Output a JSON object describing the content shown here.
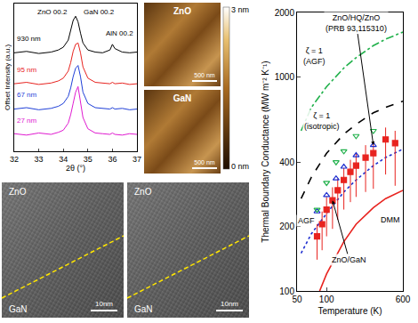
{
  "chart_data": [
    {
      "type": "line",
      "xlabel": "2θ (°)",
      "ylabel": "Offset Intensity (a.u.)",
      "xlim": [
        32,
        37
      ],
      "xticks": [
        32,
        33,
        34,
        35,
        36,
        37
      ],
      "ylim": [
        0,
        10.5
      ],
      "tick_labels": "x",
      "grid": false,
      "x": [
        32,
        32.5,
        33,
        33.5,
        33.8,
        34,
        34.2,
        34.3,
        34.4,
        34.5,
        34.6,
        34.7,
        34.8,
        35,
        35.3,
        35.6,
        35.9,
        36,
        36.1,
        36.4,
        36.7,
        37
      ],
      "series": [
        {
          "name": "930 nm",
          "color": "#000000",
          "values": [
            7.0,
            7.1,
            6.95,
            7.05,
            7.2,
            7.4,
            7.9,
            8.6,
            9.3,
            9.6,
            9.2,
            8.4,
            7.7,
            7.2,
            7.05,
            7.0,
            7.2,
            7.6,
            7.3,
            7.05,
            7.0,
            7.05
          ]
        },
        {
          "name": "95 nm",
          "color": "#e8231f",
          "values": [
            4.8,
            4.9,
            4.75,
            4.85,
            5.0,
            5.2,
            5.7,
            6.3,
            7.1,
            7.6,
            7.7,
            7.0,
            6.0,
            5.2,
            4.9,
            4.85,
            4.8,
            4.9,
            4.8,
            4.85,
            4.75,
            4.8
          ]
        },
        {
          "name": "67 nm",
          "color": "#1f3fd8",
          "values": [
            3.0,
            3.1,
            2.95,
            3.05,
            3.2,
            3.4,
            3.9,
            4.5,
            5.3,
            5.9,
            6.1,
            5.3,
            4.2,
            3.4,
            3.1,
            3.05,
            3.0,
            3.1,
            3.0,
            3.05,
            2.95,
            3.0
          ]
        },
        {
          "name": "27 nm",
          "color": "#e01ad0",
          "values": [
            1.25,
            1.15,
            1.3,
            1.2,
            1.35,
            1.5,
            2.0,
            2.6,
            3.4,
            4.2,
            4.6,
            3.6,
            2.4,
            1.6,
            1.3,
            1.25,
            1.2,
            1.3,
            1.2,
            1.15,
            1.25,
            1.2
          ]
        }
      ],
      "series_labels": [
        {
          "text": "930 nm",
          "x": 32.05,
          "y": 8.0
        },
        {
          "text": "95 nm",
          "x": 32.05,
          "y": 5.8
        },
        {
          "text": "67 nm",
          "x": 32.05,
          "y": 4.0
        },
        {
          "text": "27 nm",
          "x": 32.05,
          "y": 2.2
        }
      ],
      "annotations": [
        {
          "text": "ZnO 00.2",
          "x": 33.55,
          "y": 9.9
        },
        {
          "text": "GaN 00.2",
          "x": 35.45,
          "y": 9.9
        },
        {
          "text": "AlN 00.2",
          "x": 36.3,
          "y": 8.4
        }
      ]
    },
    {
      "type": "scatter",
      "xlabel": "Temperature (K)",
      "ylabel": "Thermal Boundary Conductance (MW m⁻² K⁻¹)",
      "log": true,
      "grid": false,
      "xlim": [
        50,
        600
      ],
      "xticks": [
        50,
        100,
        600
      ],
      "ylim": [
        100,
        2000
      ],
      "yticks": [
        100,
        200,
        400,
        1000,
        2000
      ],
      "series": [
        {
          "type": "line",
          "color": "#22b14c",
          "line_style": "dashdot",
          "x": [
            55,
            70,
            100,
            150,
            200,
            300,
            400,
            600
          ],
          "values": [
            560,
            720,
            900,
            1100,
            1230,
            1400,
            1500,
            1620
          ]
        },
        {
          "type": "line",
          "color": "#000000",
          "line_style": "dashed",
          "x": [
            55,
            70,
            100,
            150,
            200,
            300,
            400,
            600
          ],
          "values": [
            270,
            340,
            440,
            540,
            600,
            680,
            720,
            770
          ]
        },
        {
          "type": "line",
          "color": "#1f2fd0",
          "line_style": "dotted",
          "x": [
            55,
            70,
            100,
            150,
            200,
            300,
            400,
            600
          ],
          "values": [
            150,
            185,
            230,
            290,
            330,
            385,
            420,
            460
          ]
        },
        {
          "type": "line",
          "color": "#e8231f",
          "line_style": "solid",
          "x": [
            85,
            100,
            150,
            200,
            300,
            400,
            600
          ],
          "values": [
            100,
            120,
            170,
            205,
            245,
            270,
            295
          ]
        },
        {
          "type": "scatter",
          "color": "#e8231f",
          "marker": "square",
          "x": [
            80,
            90,
            100,
            115,
            130,
            150,
            175,
            200,
            250,
            300,
            400,
            500
          ],
          "values": [
            180,
            205,
            240,
            265,
            295,
            330,
            360,
            385,
            420,
            440,
            510,
            490
          ],
          "error_plus": [
            25,
            30,
            35,
            40,
            40,
            45,
            50,
            55,
            60,
            60,
            70,
            70
          ],
          "error_minus": [
            40,
            50,
            60,
            70,
            80,
            90,
            100,
            110,
            130,
            140,
            160,
            180
          ]
        },
        {
          "type": "scatter",
          "color": "#1f2fd0",
          "marker": "triangle-up-open",
          "x": [
            80,
            100,
            125,
            150,
            200,
            300
          ],
          "values": [
            235,
            280,
            335,
            380,
            430,
            480
          ]
        },
        {
          "type": "scatter",
          "color": "#22b14c",
          "marker": "triangle-down-open",
          "x": [
            80,
            100,
            125,
            150,
            200,
            300
          ],
          "values": [
            240,
            320,
            400,
            450,
            530,
            560
          ]
        }
      ],
      "annotations": [
        {
          "text": "ζ = 1 (AGF)",
          "x": 75,
          "y": 1250
        },
        {
          "text": "ζ = 1 (isotropic)",
          "x": 90,
          "y": 620
        },
        {
          "text": "ZnO/HQ/ZnO (PRB 93,115310)",
          "x": 200,
          "y": 1790,
          "arrow_to": [
            300,
            480
          ]
        },
        {
          "text": "AGF",
          "x": 62,
          "y": 212
        },
        {
          "text": "DMM",
          "x": 450,
          "y": 215
        },
        {
          "text": "ZnO/GaN",
          "x": 170,
          "y": 140,
          "arrow_to": [
            115,
            265
          ]
        }
      ]
    }
  ],
  "afm": {
    "images": [
      {
        "label": "ZnO",
        "scale_bar": "500 nm"
      },
      {
        "label": "GaN",
        "scale_bar": "500 nm"
      }
    ],
    "colorbar": {
      "max": "3 nm",
      "min": "0 nm"
    }
  },
  "tem": {
    "images": [
      {
        "top": "ZnO",
        "bottom": "GaN",
        "scale_bar": "10nm"
      },
      {
        "top": "ZnO",
        "bottom": "GaN",
        "scale_bar": "10nm"
      }
    ]
  }
}
